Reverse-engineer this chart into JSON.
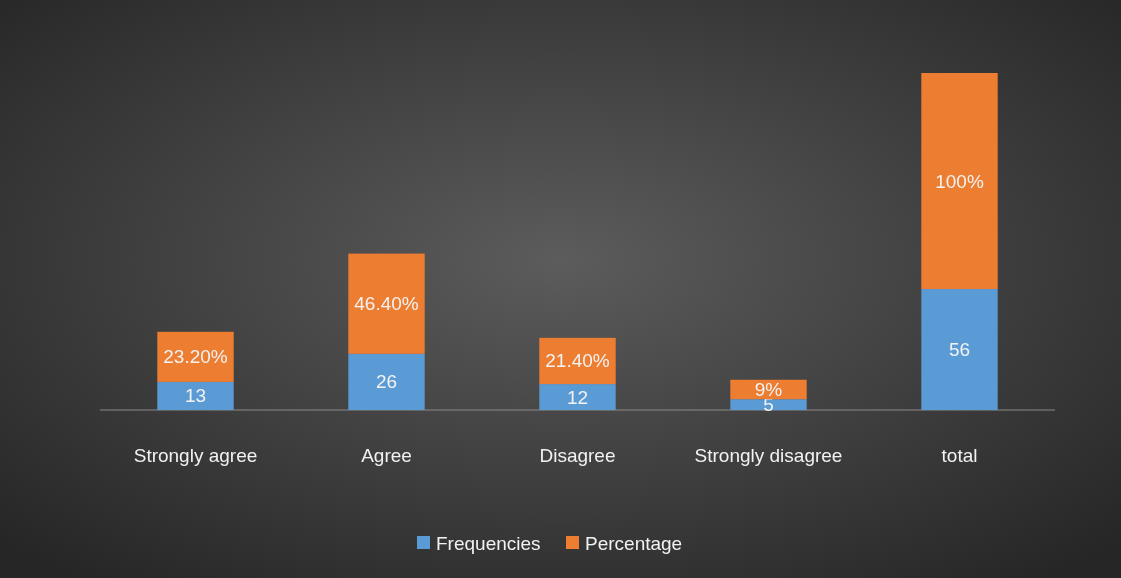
{
  "chart_data": {
    "type": "bar",
    "stacked": true,
    "categories": [
      "Strongly agree",
      "Agree",
      "Disagree",
      "Strongly disagree",
      "total"
    ],
    "series": [
      {
        "name": "Frequencies",
        "color": "#5b9bd5",
        "values": [
          13,
          26,
          12,
          5,
          56
        ]
      },
      {
        "name": "Percentage",
        "color": "#ed7d31",
        "values": [
          23.2,
          46.4,
          21.4,
          9,
          100
        ],
        "value_labels": [
          "23.20%",
          "46.40%",
          "21.40%",
          "9%",
          "100%"
        ]
      }
    ],
    "data_labels": true,
    "legend": "bottom"
  }
}
